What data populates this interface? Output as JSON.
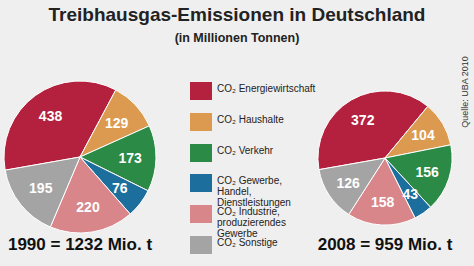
{
  "chart_data": {
    "type": "pie",
    "title": "Treibhausgas-Emissionen in Deutschland",
    "subtitle": "(in Millionen Tonnen)",
    "annotations": [
      "Quelle: UBA 2010"
    ],
    "categories": [
      "CO₂ Energiewirtschaft",
      "CO₂ Haushalte",
      "CO₂ Verkehr",
      "CO₂ Gewerbe, Handel, Dienstleistungen",
      "CO₂ Industrie, produzierendes Gewerbe",
      "CO₂ Sonstige"
    ],
    "colors": [
      "#b3213f",
      "#dc9a50",
      "#2b8a46",
      "#1c6f9d",
      "#d8868a",
      "#a4a4a4"
    ],
    "series": [
      {
        "name": "1990 = 1232 Mio. t",
        "values": [
          438,
          129,
          173,
          76,
          220,
          195
        ]
      },
      {
        "name": "2008 = 959 Mio. t",
        "values": [
          372,
          104,
          156,
          43,
          158,
          126
        ]
      }
    ],
    "legend": "center",
    "data_labels": true
  }
}
